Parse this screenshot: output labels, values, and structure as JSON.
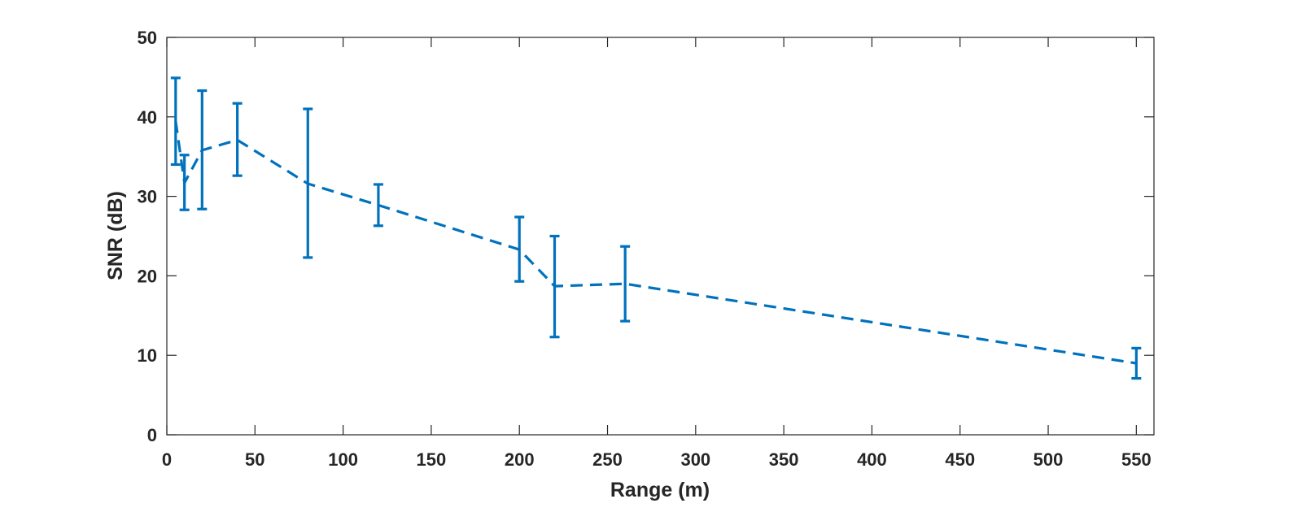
{
  "chart_data": {
    "type": "line",
    "title": "",
    "xlabel": "Range (m)",
    "ylabel": "SNR (dB)",
    "xlim": [
      0,
      560
    ],
    "ylim": [
      0,
      50
    ],
    "xticks": [
      0,
      50,
      100,
      150,
      200,
      250,
      300,
      350,
      400,
      450,
      500,
      550
    ],
    "yticks": [
      0,
      10,
      20,
      30,
      40,
      50
    ],
    "grid": false,
    "line_style": "dashed",
    "error_bars": true,
    "color": "#0072BD",
    "series": [
      {
        "x": [
          5,
          10,
          20,
          40,
          80,
          120,
          200,
          220,
          260,
          550
        ],
        "y": [
          39.5,
          31.7,
          35.8,
          37.1,
          31.6,
          28.9,
          23.3,
          18.7,
          19.0,
          9.0
        ],
        "err_low": [
          34.0,
          28.3,
          28.4,
          32.6,
          22.3,
          26.3,
          19.3,
          12.3,
          14.3,
          7.1
        ],
        "err_high": [
          44.9,
          35.2,
          43.3,
          41.7,
          41.0,
          31.5,
          27.4,
          25.0,
          23.7,
          10.9
        ]
      }
    ]
  }
}
